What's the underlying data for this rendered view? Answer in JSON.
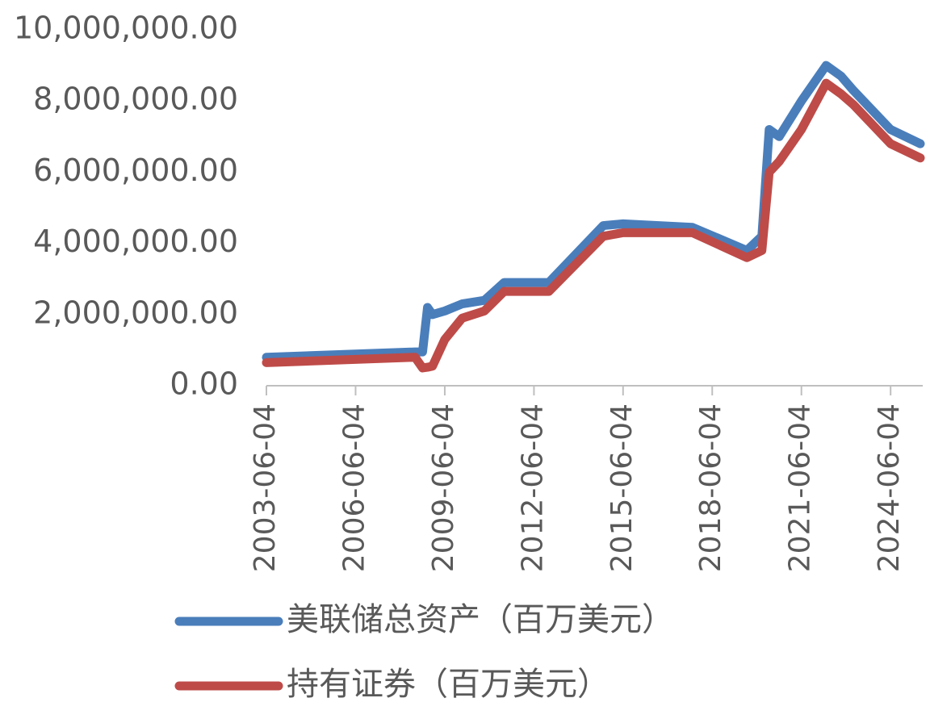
{
  "chart_data": {
    "type": "line",
    "x": [
      "2003-06-04",
      "2008-06-04",
      "2008-09-04",
      "2008-11-04",
      "2009-01-04",
      "2009-06-04",
      "2010-01-04",
      "2010-10-04",
      "2011-06-04",
      "2012-12-04",
      "2014-10-04",
      "2015-06-04",
      "2017-10-04",
      "2019-08-04",
      "2020-02-04",
      "2020-05-04",
      "2020-09-04",
      "2021-06-04",
      "2022-04-04",
      "2022-10-04",
      "2023-03-04",
      "2024-06-04",
      "2025-06-04"
    ],
    "series": [
      {
        "name": "美联储总资产（百万美元）",
        "color": "#4a7ebb",
        "values": [
          800000,
          950000,
          950000,
          2200000,
          2000000,
          2100000,
          2300000,
          2400000,
          2900000,
          2900000,
          4500000,
          4550000,
          4450000,
          3800000,
          4200000,
          7200000,
          7000000,
          8000000,
          9000000,
          8700000,
          8300000,
          7200000,
          6800000
        ]
      },
      {
        "name": "持有证券（百万美元）",
        "color": "#be4b48",
        "values": [
          650000,
          800000,
          500000,
          520000,
          550000,
          1300000,
          1900000,
          2100000,
          2650000,
          2650000,
          4200000,
          4300000,
          4300000,
          3600000,
          3800000,
          6000000,
          6300000,
          7200000,
          8500000,
          8200000,
          7900000,
          6800000,
          6400000
        ]
      }
    ],
    "xlim": [
      "2003-06-04",
      "2025-07-04"
    ],
    "xticks": [
      "2003-06-04",
      "2006-06-04",
      "2009-06-04",
      "2012-06-04",
      "2015-06-04",
      "2018-06-04",
      "2021-06-04",
      "2024-06-04"
    ],
    "ylim": [
      0,
      10000000
    ],
    "yticks": [
      {
        "value": 0,
        "label": "0.00"
      },
      {
        "value": 2000000,
        "label": "2,000,000.00"
      },
      {
        "value": 4000000,
        "label": "4,000,000.00"
      },
      {
        "value": 6000000,
        "label": "6,000,000.00"
      },
      {
        "value": 8000000,
        "label": "8,000,000.00"
      },
      {
        "value": 10000000,
        "label": "10,000,000.00"
      }
    ],
    "grid": false,
    "legend": "bottom"
  }
}
